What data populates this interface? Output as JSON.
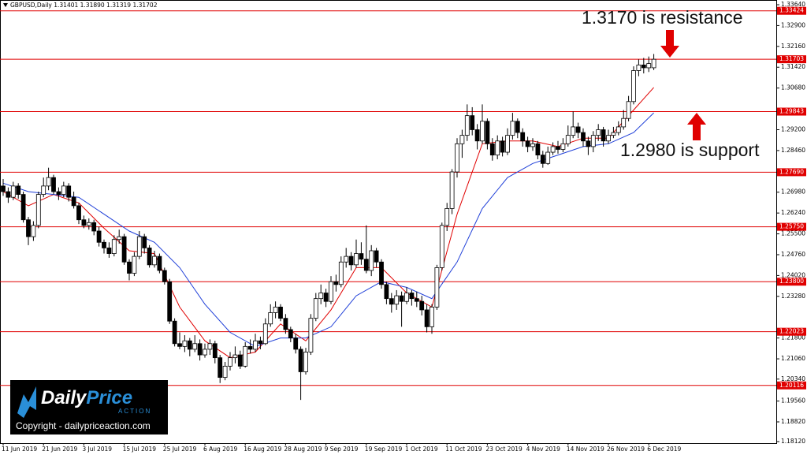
{
  "chart_data": {
    "type": "candlestick",
    "title": "GBPUSD,Daily  1.31401 1.31890 1.31319 1.31702",
    "categories": [
      "11 Jun 2019",
      null,
      null,
      null,
      null,
      null,
      null,
      null,
      "21 Jun 2019",
      null,
      null,
      null,
      null,
      null,
      null,
      null,
      "3 Jul 2019",
      null,
      null,
      null,
      null,
      null,
      null,
      null,
      "15 Jul 2019",
      null,
      null,
      null,
      null,
      null,
      null,
      null,
      "25 Jul 2019",
      null,
      null,
      null,
      null,
      null,
      null,
      null,
      "6 Aug 2019",
      null,
      null,
      null,
      null,
      null,
      null,
      null,
      "16 Aug 2019",
      null,
      null,
      null,
      null,
      null,
      null,
      null,
      "28 Aug 2019",
      null,
      null,
      null,
      null,
      null,
      null,
      null,
      "9 Sep 2019",
      null,
      null,
      null,
      null,
      null,
      null,
      null,
      "19 Sep 2019",
      null,
      null,
      null,
      null,
      null,
      null,
      null,
      "1 Oct 2019",
      null,
      null,
      null,
      null,
      null,
      null,
      null,
      "11 Oct 2019",
      null,
      null,
      null,
      null,
      null,
      null,
      null,
      "23 Oct 2019",
      null,
      null,
      null,
      null,
      null,
      null,
      null,
      "4 Nov 2019",
      null,
      null,
      null,
      null,
      null,
      null,
      null,
      "14 Nov 2019",
      null,
      null,
      null,
      null,
      null,
      null,
      null,
      "26 Nov 2019",
      null,
      null,
      null,
      null,
      null,
      null,
      null,
      "6 Dec 2019",
      null
    ],
    "ohlc": [
      [
        1.272,
        1.2745,
        1.2685,
        1.27
      ],
      [
        1.27,
        1.2715,
        1.266,
        1.268
      ],
      [
        1.268,
        1.2735,
        1.267,
        1.272
      ],
      [
        1.272,
        1.273,
        1.2675,
        1.269
      ],
      [
        1.269,
        1.27,
        1.259,
        1.26
      ],
      [
        1.26,
        1.261,
        1.251,
        1.254
      ],
      [
        1.254,
        1.2595,
        1.2525,
        1.258
      ],
      [
        1.258,
        1.27,
        1.257,
        1.269
      ],
      [
        1.269,
        1.275,
        1.268,
        1.272
      ],
      [
        1.272,
        1.2785,
        1.2705,
        1.275
      ],
      [
        1.275,
        1.276,
        1.269,
        1.27
      ],
      [
        1.27,
        1.2715,
        1.267,
        1.269
      ],
      [
        1.269,
        1.2735,
        1.268,
        1.272
      ],
      [
        1.272,
        1.273,
        1.2665,
        1.268
      ],
      [
        1.268,
        1.27,
        1.264,
        1.265
      ],
      [
        1.265,
        1.266,
        1.2585,
        1.26
      ],
      [
        1.26,
        1.2615,
        1.257,
        1.258
      ],
      [
        1.258,
        1.2605,
        1.2565,
        1.259
      ],
      [
        1.259,
        1.26,
        1.2545,
        1.256
      ],
      [
        1.256,
        1.2575,
        1.2505,
        1.252
      ],
      [
        1.252,
        1.253,
        1.248,
        1.25
      ],
      [
        1.25,
        1.252,
        1.2465,
        1.248
      ],
      [
        1.248,
        1.2545,
        1.247,
        1.253
      ],
      [
        1.253,
        1.2565,
        1.2515,
        1.254
      ],
      [
        1.254,
        1.255,
        1.244,
        1.245
      ],
      [
        1.245,
        1.246,
        1.2385,
        1.241
      ],
      [
        1.241,
        1.2485,
        1.24,
        1.247
      ],
      [
        1.247,
        1.256,
        1.246,
        1.254
      ],
      [
        1.254,
        1.255,
        1.248,
        1.25
      ],
      [
        1.25,
        1.251,
        1.243,
        1.244
      ],
      [
        1.244,
        1.249,
        1.243,
        1.247
      ],
      [
        1.247,
        1.248,
        1.241,
        1.242
      ],
      [
        1.242,
        1.243,
        1.237,
        1.238
      ],
      [
        1.238,
        1.239,
        1.223,
        1.224
      ],
      [
        1.224,
        1.225,
        1.215,
        1.216
      ],
      [
        1.216,
        1.22,
        1.214,
        1.215
      ],
      [
        1.215,
        1.219,
        1.213,
        1.217
      ],
      [
        1.217,
        1.218,
        1.2115,
        1.214
      ],
      [
        1.214,
        1.219,
        1.213,
        1.216
      ],
      [
        1.216,
        1.2175,
        1.21,
        1.212
      ],
      [
        1.212,
        1.216,
        1.211,
        1.214
      ],
      [
        1.214,
        1.2175,
        1.212,
        1.216
      ],
      [
        1.216,
        1.217,
        1.209,
        1.211
      ],
      [
        1.211,
        1.212,
        1.202,
        1.204
      ],
      [
        1.204,
        1.2095,
        1.203,
        1.208
      ],
      [
        1.208,
        1.213,
        1.2065,
        1.211
      ],
      [
        1.211,
        1.215,
        1.209,
        1.212
      ],
      [
        1.212,
        1.2135,
        1.207,
        1.208
      ],
      [
        1.208,
        1.2165,
        1.2075,
        1.215
      ],
      [
        1.215,
        1.2175,
        1.2125,
        1.214
      ],
      [
        1.214,
        1.2195,
        1.213,
        1.217
      ],
      [
        1.217,
        1.2185,
        1.214,
        1.216
      ],
      [
        1.216,
        1.225,
        1.2155,
        1.223
      ],
      [
        1.223,
        1.23,
        1.222,
        1.227
      ],
      [
        1.227,
        1.231,
        1.225,
        1.229
      ],
      [
        1.229,
        1.23,
        1.224,
        1.225
      ],
      [
        1.225,
        1.2265,
        1.2195,
        1.221
      ],
      [
        1.221,
        1.222,
        1.2165,
        1.218
      ],
      [
        1.218,
        1.2195,
        1.2125,
        1.214
      ],
      [
        1.214,
        1.215,
        1.196,
        1.206
      ],
      [
        1.206,
        1.2145,
        1.205,
        1.213
      ],
      [
        1.213,
        1.2265,
        1.212,
        1.225
      ],
      [
        1.225,
        1.234,
        1.224,
        1.232
      ],
      [
        1.232,
        1.237,
        1.23,
        1.234
      ],
      [
        1.234,
        1.2355,
        1.229,
        1.231
      ],
      [
        1.231,
        1.24,
        1.23,
        1.238
      ],
      [
        1.238,
        1.2405,
        1.2345,
        1.237
      ],
      [
        1.237,
        1.247,
        1.236,
        1.245
      ],
      [
        1.245,
        1.25,
        1.243,
        1.247
      ],
      [
        1.247,
        1.2485,
        1.242,
        1.244
      ],
      [
        1.244,
        1.253,
        1.243,
        1.248
      ],
      [
        1.248,
        1.252,
        1.244,
        1.246
      ],
      [
        1.246,
        1.258,
        1.241,
        1.242
      ],
      [
        1.242,
        1.251,
        1.24,
        1.249
      ],
      [
        1.249,
        1.25,
        1.243,
        1.245
      ],
      [
        1.245,
        1.246,
        1.2355,
        1.237
      ],
      [
        1.237,
        1.238,
        1.23,
        1.232
      ],
      [
        1.232,
        1.234,
        1.227,
        1.23
      ],
      [
        1.23,
        1.235,
        1.228,
        1.233
      ],
      [
        1.233,
        1.2345,
        1.222,
        1.231
      ],
      [
        1.231,
        1.236,
        1.23,
        1.234
      ],
      [
        1.234,
        1.235,
        1.2295,
        1.232
      ],
      [
        1.232,
        1.2345,
        1.229,
        1.231
      ],
      [
        1.231,
        1.233,
        1.226,
        1.228
      ],
      [
        1.228,
        1.23,
        1.22,
        1.222
      ],
      [
        1.222,
        1.23,
        1.2195,
        1.229
      ],
      [
        1.229,
        1.244,
        1.228,
        1.243
      ],
      [
        1.243,
        1.259,
        1.242,
        1.258
      ],
      [
        1.258,
        1.266,
        1.256,
        1.264
      ],
      [
        1.264,
        1.278,
        1.262,
        1.277
      ],
      [
        1.277,
        1.289,
        1.275,
        1.287
      ],
      [
        1.287,
        1.292,
        1.282,
        1.29
      ],
      [
        1.29,
        1.301,
        1.288,
        1.297
      ],
      [
        1.297,
        1.3,
        1.29,
        1.292
      ],
      [
        1.292,
        1.294,
        1.285,
        1.288
      ],
      [
        1.288,
        1.301,
        1.287,
        1.295
      ],
      [
        1.295,
        1.296,
        1.285,
        1.287
      ],
      [
        1.287,
        1.289,
        1.281,
        1.283
      ],
      [
        1.283,
        1.29,
        1.2815,
        1.288
      ],
      [
        1.288,
        1.2895,
        1.2825,
        1.284
      ],
      [
        1.284,
        1.2925,
        1.283,
        1.29
      ],
      [
        1.29,
        1.298,
        1.2885,
        1.295
      ],
      [
        1.295,
        1.296,
        1.289,
        1.291
      ],
      [
        1.291,
        1.2925,
        1.286,
        1.288
      ],
      [
        1.288,
        1.2895,
        1.284,
        1.286
      ],
      [
        1.286,
        1.289,
        1.2845,
        1.287
      ],
      [
        1.287,
        1.288,
        1.2815,
        1.283
      ],
      [
        1.283,
        1.2845,
        1.2785,
        1.28
      ],
      [
        1.28,
        1.286,
        1.2795,
        1.284
      ],
      [
        1.284,
        1.2875,
        1.283,
        1.286
      ],
      [
        1.286,
        1.288,
        1.2835,
        1.285
      ],
      [
        1.285,
        1.289,
        1.284,
        1.287
      ],
      [
        1.287,
        1.2935,
        1.286,
        1.29
      ],
      [
        1.29,
        1.2985,
        1.289,
        1.293
      ],
      [
        1.293,
        1.2945,
        1.289,
        1.291
      ],
      [
        1.291,
        1.2925,
        1.286,
        1.288
      ],
      [
        1.288,
        1.2895,
        1.283,
        1.286
      ],
      [
        1.286,
        1.2915,
        1.284,
        1.29
      ],
      [
        1.29,
        1.294,
        1.288,
        1.292
      ],
      [
        1.292,
        1.293,
        1.286,
        1.288
      ],
      [
        1.288,
        1.292,
        1.287,
        1.29
      ],
      [
        1.29,
        1.293,
        1.289,
        1.291
      ],
      [
        1.291,
        1.295,
        1.29,
        1.293
      ],
      [
        1.293,
        1.299,
        1.292,
        1.296
      ],
      [
        1.296,
        1.304,
        1.295,
        1.302
      ],
      [
        1.302,
        1.3145,
        1.301,
        1.313
      ],
      [
        1.313,
        1.317,
        1.311,
        1.315
      ],
      [
        1.315,
        1.3175,
        1.312,
        1.314
      ],
      [
        1.314,
        1.318,
        1.3125,
        1.3155
      ],
      [
        1.31401,
        1.3189,
        1.31319,
        1.31702
      ]
    ],
    "up_color": "#ffffff",
    "down_color": "#000000",
    "ylim": [
      1.1812,
      1.3364
    ],
    "yticks": [
      {
        "value": 1.3364,
        "label": "1.33640"
      },
      {
        "value": 1.329,
        "label": "1.32900"
      },
      {
        "value": 1.3216,
        "label": "1.32160"
      },
      {
        "value": 1.3142,
        "label": "1.31420"
      },
      {
        "value": 1.3068,
        "label": "1.30680"
      },
      {
        "value": 1.292,
        "label": "1.29200"
      },
      {
        "value": 1.2846,
        "label": "1.28460"
      },
      {
        "value": 1.2698,
        "label": "1.26980"
      },
      {
        "value": 1.2624,
        "label": "1.26240"
      },
      {
        "value": 1.255,
        "label": "1.25500"
      },
      {
        "value": 1.2476,
        "label": "1.24760"
      },
      {
        "value": 1.2402,
        "label": "1.24020"
      },
      {
        "value": 1.2328,
        "label": "1.23280"
      },
      {
        "value": 1.218,
        "label": "1.21800"
      },
      {
        "value": 1.2106,
        "label": "1.21060"
      },
      {
        "value": 1.2034,
        "label": "1.20340"
      },
      {
        "value": 1.1956,
        "label": "1.19560"
      },
      {
        "value": 1.1882,
        "label": "1.18820"
      },
      {
        "value": 1.1812,
        "label": "1.18120"
      }
    ],
    "level_color": "#e00000",
    "levels": [
      {
        "value": 1.33424,
        "label": "1.33424"
      },
      {
        "value": 1.31703,
        "label": "1.31703"
      },
      {
        "value": 1.29843,
        "label": "1.29843"
      },
      {
        "value": 1.2769,
        "label": "1.27690"
      },
      {
        "value": 1.2575,
        "label": "1.25750"
      },
      {
        "value": 1.238,
        "label": "1.23800"
      },
      {
        "value": 1.22023,
        "label": "1.22023"
      },
      {
        "value": 1.20116,
        "label": "1.20116"
      }
    ],
    "overlays": [
      {
        "color": "#e00000",
        "x": [
          0,
          5,
          10,
          15,
          20,
          25,
          30,
          35,
          40,
          45,
          50,
          55,
          60,
          65,
          70,
          75,
          80,
          85,
          90,
          95,
          100,
          105,
          110,
          115,
          120,
          125,
          129
        ],
        "values": [
          1.27,
          1.265,
          1.269,
          1.266,
          1.257,
          1.249,
          1.248,
          1.229,
          1.217,
          1.211,
          1.213,
          1.223,
          1.217,
          1.228,
          1.243,
          1.243,
          1.234,
          1.229,
          1.262,
          1.287,
          1.288,
          1.288,
          1.286,
          1.289,
          1.289,
          1.299,
          1.307
        ]
      },
      {
        "color": "#1f3fd8",
        "x": [
          0,
          5,
          10,
          15,
          20,
          25,
          30,
          35,
          40,
          45,
          50,
          55,
          60,
          65,
          70,
          75,
          80,
          85,
          90,
          95,
          100,
          105,
          110,
          115,
          120,
          125,
          129
        ],
        "values": [
          1.273,
          1.27,
          1.269,
          1.268,
          1.262,
          1.256,
          1.252,
          1.243,
          1.23,
          1.22,
          1.215,
          1.218,
          1.218,
          1.222,
          1.233,
          1.238,
          1.236,
          1.232,
          1.245,
          1.264,
          1.275,
          1.28,
          1.283,
          1.286,
          1.287,
          1.291,
          1.298
        ]
      }
    ],
    "annotations": [
      {
        "text": "1.3170 is resistance"
      },
      {
        "text": "1.2980 is support"
      }
    ]
  },
  "logo": {
    "brand_a": "Daily",
    "brand_b": "Price",
    "tagline": "ACTION",
    "copyright": "Copyright - dailypriceaction.com"
  }
}
